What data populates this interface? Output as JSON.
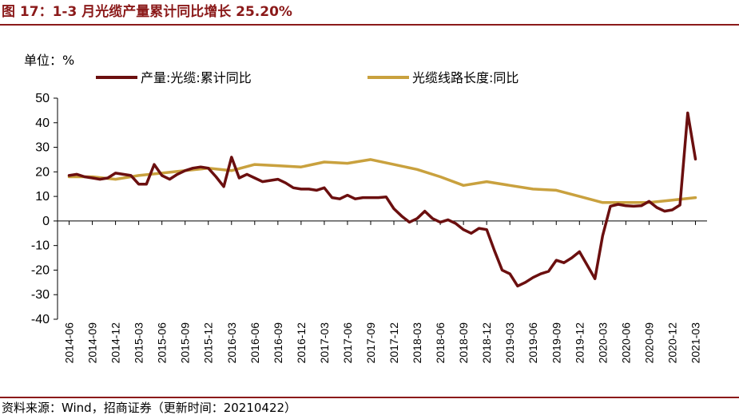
{
  "figure": {
    "title": "图 17：1-3 月光缆产量累计同比增长 25.20%",
    "unit_label": "单位：%",
    "source": "资料来源：Wind，招商证券（更新时间：20210422）"
  },
  "colors": {
    "title": "#8B1A1A",
    "series1": "#6B0F0F",
    "series2": "#C9A13E"
  },
  "chart_data": {
    "type": "line",
    "ylim": [
      -40,
      50
    ],
    "yticks": [
      50,
      40,
      30,
      20,
      10,
      0,
      -10,
      -20,
      -30,
      -40
    ],
    "xticks": [
      "2014-06",
      "2014-09",
      "2014-12",
      "2015-03",
      "2015-06",
      "2015-09",
      "2015-12",
      "2016-03",
      "2016-06",
      "2016-09",
      "2016-12",
      "2017-03",
      "2017-06",
      "2017-09",
      "2017-12",
      "2018-03",
      "2018-06",
      "2018-09",
      "2018-12",
      "2019-03",
      "2019-06",
      "2019-09",
      "2019-12",
      "2020-03",
      "2020-06",
      "2020-09",
      "2020-12",
      "2021-03"
    ],
    "legend_position": "top",
    "series": [
      {
        "name": "产量:光缆:累计同比",
        "color": "#6B0F0F",
        "points": [
          [
            "2014-06",
            18.5
          ],
          [
            "2014-07",
            19
          ],
          [
            "2014-08",
            18
          ],
          [
            "2014-09",
            17.5
          ],
          [
            "2014-10",
            17
          ],
          [
            "2014-11",
            17.5
          ],
          [
            "2014-12",
            19.5
          ],
          [
            "2015-01",
            19
          ],
          [
            "2015-02",
            18.5
          ],
          [
            "2015-03",
            15
          ],
          [
            "2015-04",
            15
          ],
          [
            "2015-05",
            23
          ],
          [
            "2015-06",
            18.5
          ],
          [
            "2015-07",
            17
          ],
          [
            "2015-08",
            19
          ],
          [
            "2015-09",
            20.5
          ],
          [
            "2015-10",
            21.5
          ],
          [
            "2015-11",
            22
          ],
          [
            "2015-12",
            21.5
          ],
          [
            "2016-01",
            18
          ],
          [
            "2016-02",
            14
          ],
          [
            "2016-03",
            26
          ],
          [
            "2016-04",
            17.5
          ],
          [
            "2016-05",
            19
          ],
          [
            "2016-06",
            17.5
          ],
          [
            "2016-07",
            16
          ],
          [
            "2016-08",
            16.5
          ],
          [
            "2016-09",
            17
          ],
          [
            "2016-10",
            15.5
          ],
          [
            "2016-11",
            13.5
          ],
          [
            "2016-12",
            13
          ],
          [
            "2017-01",
            13
          ],
          [
            "2017-02",
            12.5
          ],
          [
            "2017-03",
            13.5
          ],
          [
            "2017-04",
            9.5
          ],
          [
            "2017-05",
            9
          ],
          [
            "2017-06",
            10.5
          ],
          [
            "2017-07",
            9
          ],
          [
            "2017-08",
            9.5
          ],
          [
            "2017-09",
            9.5
          ],
          [
            "2017-10",
            9.5
          ],
          [
            "2017-11",
            9.8
          ],
          [
            "2017-12",
            5
          ],
          [
            "2018-01",
            2
          ],
          [
            "2018-02",
            -0.5
          ],
          [
            "2018-03",
            1
          ],
          [
            "2018-04",
            4
          ],
          [
            "2018-05",
            1
          ],
          [
            "2018-06",
            -0.5
          ],
          [
            "2018-07",
            0.5
          ],
          [
            "2018-08",
            -1
          ],
          [
            "2018-09",
            -3.5
          ],
          [
            "2018-10",
            -5
          ],
          [
            "2018-11",
            -3
          ],
          [
            "2018-12",
            -3.5
          ],
          [
            "2019-01",
            -12
          ],
          [
            "2019-02",
            -20
          ],
          [
            "2019-03",
            -21.5
          ],
          [
            "2019-04",
            -26.5
          ],
          [
            "2019-05",
            -25
          ],
          [
            "2019-06",
            -23
          ],
          [
            "2019-07",
            -21.5
          ],
          [
            "2019-08",
            -20.5
          ],
          [
            "2019-09",
            -16
          ],
          [
            "2019-10",
            -17
          ],
          [
            "2019-11",
            -15
          ],
          [
            "2019-12",
            -12.5
          ],
          [
            "2020-01",
            -18
          ],
          [
            "2020-02",
            -23.5
          ],
          [
            "2020-03",
            -6
          ],
          [
            "2020-04",
            6
          ],
          [
            "2020-05",
            6.8
          ],
          [
            "2020-06",
            6.2
          ],
          [
            "2020-07",
            6
          ],
          [
            "2020-08",
            6.2
          ],
          [
            "2020-09",
            8
          ],
          [
            "2020-10",
            5.5
          ],
          [
            "2020-11",
            4
          ],
          [
            "2020-12",
            4.5
          ],
          [
            "2021-01",
            6.5
          ],
          [
            "2021-02",
            44
          ],
          [
            "2021-03",
            25.2
          ]
        ]
      },
      {
        "name": "光缆线路长度:同比",
        "color": "#C9A13E",
        "points": [
          [
            "2014-06",
            18
          ],
          [
            "2014-09",
            18
          ],
          [
            "2014-12",
            17
          ],
          [
            "2015-03",
            18.5
          ],
          [
            "2015-06",
            19.5
          ],
          [
            "2015-09",
            20.5
          ],
          [
            "2015-12",
            21.5
          ],
          [
            "2016-03",
            20.5
          ],
          [
            "2016-06",
            23
          ],
          [
            "2016-09",
            22.5
          ],
          [
            "2016-12",
            22
          ],
          [
            "2017-03",
            24
          ],
          [
            "2017-06",
            23.5
          ],
          [
            "2017-09",
            25
          ],
          [
            "2017-12",
            23
          ],
          [
            "2018-03",
            21
          ],
          [
            "2018-06",
            18
          ],
          [
            "2018-09",
            14.5
          ],
          [
            "2018-12",
            16
          ],
          [
            "2019-03",
            14.5
          ],
          [
            "2019-06",
            13
          ],
          [
            "2019-09",
            12.5
          ],
          [
            "2019-12",
            10
          ],
          [
            "2020-03",
            7.5
          ],
          [
            "2020-06",
            7.5
          ],
          [
            "2020-09",
            7.5
          ],
          [
            "2020-12",
            8.5
          ],
          [
            "2021-03",
            9.5
          ]
        ]
      }
    ]
  }
}
